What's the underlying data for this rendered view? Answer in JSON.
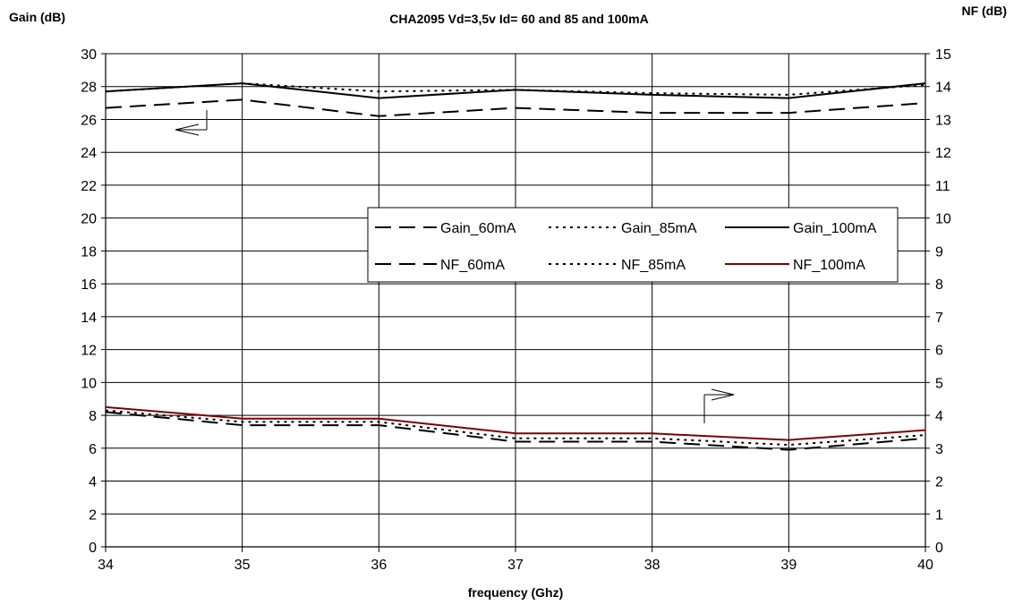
{
  "chart_data": {
    "type": "line",
    "title": "CHA2095  Vd=3,5v  Id= 60 and 85 and  100mA",
    "xlabel": "frequency (Ghz)",
    "ylabel_left": "Gain (dB)",
    "ylabel_right": "NF (dB)",
    "x": [
      34,
      35,
      36,
      37,
      38,
      39,
      40
    ],
    "x_ticks": [
      "34",
      "35",
      "36",
      "37",
      "38",
      "39",
      "40"
    ],
    "xlim": [
      34,
      40
    ],
    "ylim_left": [
      0,
      30
    ],
    "ylim_right": [
      0,
      15
    ],
    "y_ticks_left": [
      "0",
      "2",
      "4",
      "6",
      "8",
      "10",
      "12",
      "14",
      "16",
      "18",
      "20",
      "22",
      "24",
      "26",
      "28",
      "30"
    ],
    "y_ticks_right": [
      "0",
      "1",
      "2",
      "3",
      "4",
      "5",
      "6",
      "7",
      "8",
      "9",
      "10",
      "11",
      "12",
      "13",
      "14",
      "15"
    ],
    "grid": "horizontal",
    "legend_position": "center-right, inside plot",
    "series": [
      {
        "name": "Gain_60mA",
        "axis": "left",
        "style": "dashed",
        "color": "#000000",
        "values": [
          26.7,
          27.2,
          26.2,
          26.7,
          26.4,
          26.4,
          27.0
        ]
      },
      {
        "name": "Gain_85mA",
        "axis": "left",
        "style": "dotted",
        "color": "#000000",
        "values": [
          27.7,
          28.2,
          27.7,
          27.8,
          27.6,
          27.5,
          28.1
        ]
      },
      {
        "name": "Gain_100mA",
        "axis": "left",
        "style": "solid",
        "color": "#000000",
        "values": [
          27.7,
          28.2,
          27.3,
          27.8,
          27.5,
          27.3,
          28.2
        ]
      },
      {
        "name": "NF_60mA",
        "axis": "right",
        "style": "dashed",
        "color": "#000000",
        "values": [
          4.1,
          3.7,
          3.7,
          3.2,
          3.2,
          2.95,
          3.3
        ]
      },
      {
        "name": "NF_85mA",
        "axis": "right",
        "style": "dotted",
        "color": "#000000",
        "values": [
          4.15,
          3.8,
          3.8,
          3.3,
          3.3,
          3.1,
          3.4
        ]
      },
      {
        "name": "NF_100mA",
        "axis": "right",
        "style": "solid",
        "color": "#7f0000",
        "values": [
          4.25,
          3.9,
          3.9,
          3.45,
          3.45,
          3.25,
          3.55
        ]
      }
    ]
  }
}
